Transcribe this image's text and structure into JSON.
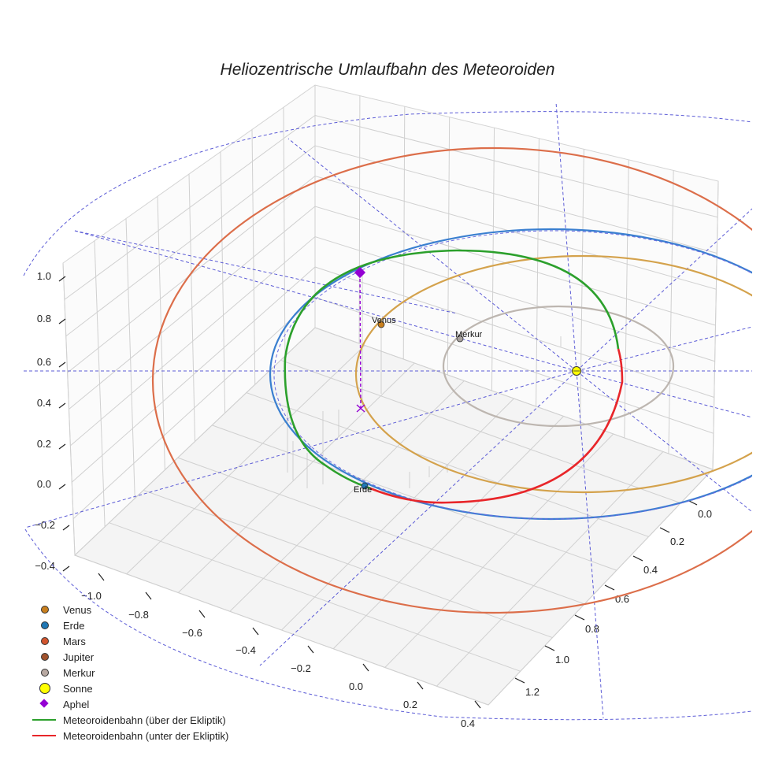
{
  "chart_data": {
    "type": "line3d",
    "title": "Heliozentrische Umlaufbahn des Meteoroiden",
    "axes": {
      "x": {
        "ticks": [
          "−1.0",
          "−0.8",
          "−0.6",
          "−0.4",
          "−0.2",
          "0.0",
          "0.2",
          "0.4"
        ],
        "range": [
          -1.0,
          0.4
        ]
      },
      "y": {
        "ticks": [
          "0.0",
          "0.2",
          "0.4",
          "0.6",
          "0.8",
          "1.0",
          "1.2"
        ],
        "range": [
          0.0,
          1.2
        ]
      },
      "z": {
        "ticks": [
          "−0.4",
          "−0.2",
          "0.0",
          "0.2",
          "0.4",
          "0.6",
          "0.8",
          "1.0"
        ],
        "range": [
          -0.4,
          1.0
        ]
      }
    },
    "orbits": [
      {
        "name": "Merkur",
        "color": "#bdb6b0",
        "semi_major_axis_au": 0.387
      },
      {
        "name": "Venus",
        "color": "#d4a24c",
        "semi_major_axis_au": 0.723
      },
      {
        "name": "Erde",
        "color": "#3a7fd0",
        "semi_major_axis_au": 1.0
      },
      {
        "name": "Mars",
        "color": "#dc6e4a",
        "semi_major_axis_au": 1.524
      }
    ],
    "meteoroid_orbit": [
      {
        "name": "Meteoroidenbahn (über der Ekliptik)",
        "color": "#2ca02c"
      },
      {
        "name": "Meteoroidenbahn (unter der Ekliptik)",
        "color": "#e8262a"
      }
    ],
    "markers": [
      {
        "name": "Venus",
        "label": "Venus",
        "color": "#c87f1e"
      },
      {
        "name": "Erde",
        "label": "Erde",
        "color": "#1f77b4"
      },
      {
        "name": "Merkur",
        "label": "Merkur",
        "color": "#a8a29e"
      },
      {
        "name": "Sonne",
        "color": "#ffff00"
      },
      {
        "name": "Aphel",
        "color": "#9400d3"
      }
    ],
    "legend": [
      {
        "label": "Venus",
        "kind": "dot",
        "color": "#c87f1e"
      },
      {
        "label": "Erde",
        "kind": "dot",
        "color": "#1f77b4"
      },
      {
        "label": "Mars",
        "kind": "dot",
        "color": "#d2552e"
      },
      {
        "label": "Jupiter",
        "kind": "dot",
        "color": "#a0522d"
      },
      {
        "label": "Merkur",
        "kind": "dot",
        "color": "#b8a9a2"
      },
      {
        "label": "Sonne",
        "kind": "bigdot",
        "color": "#ffff00"
      },
      {
        "label": "Aphel",
        "kind": "diamond",
        "color": "#9400d3"
      },
      {
        "label": "Meteoroidenbahn (über der Ekliptik)",
        "kind": "line",
        "color": "#2ca02c"
      },
      {
        "label": "Meteoroidenbahn (unter der Ekliptik)",
        "kind": "line",
        "color": "#e8262a"
      }
    ],
    "legend_position": "bottom-left"
  }
}
